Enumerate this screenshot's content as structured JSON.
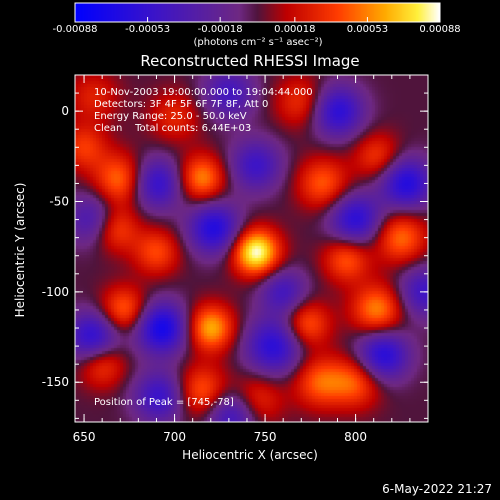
{
  "chart_data": {
    "type": "heatmap",
    "title": "Reconstructed RHESSI Image",
    "xlabel": "Heliocentric X (arcsec)",
    "ylabel": "Heliocentric Y (arcsec)",
    "xlim": [
      645,
      840
    ],
    "ylim": [
      -172,
      20
    ],
    "x_ticks": [
      650,
      700,
      750,
      800
    ],
    "y_ticks": [
      0,
      -50,
      -100,
      -150
    ],
    "colorbar": {
      "ticks": [
        "-0.00088",
        "-0.00053",
        "-0.00018",
        "0.00018",
        "0.00053",
        "0.00088"
      ],
      "tick_values": [
        -0.00088,
        -0.00053,
        -0.00018,
        0.00018,
        0.00053,
        0.00088
      ],
      "range": [
        -0.00088,
        0.00088
      ],
      "unit_label": "(photons cm⁻² s⁻¹ asec⁻²)"
    },
    "annotations": {
      "time_range": "10-Nov-2003 19:00:00.000 to 19:04:44.000",
      "detectors": "Detectors: 3F 4F 5F 6F 7F 8F, Att 0",
      "energy": "Energy Range: 25.0 - 50.0 keV",
      "clean": "Clean    Total counts: 6.44E+03",
      "peak": "Position of Peak = [745,-78]"
    },
    "sources": [
      {
        "x": 745,
        "y": -78,
        "amp": 1.0,
        "w": 9
      },
      {
        "x": 715,
        "y": -37,
        "amp": 0.62,
        "w": 9
      },
      {
        "x": 670,
        "y": -38,
        "amp": 0.58,
        "w": 10
      },
      {
        "x": 667,
        "y": -65,
        "amp": 0.5,
        "w": 9
      },
      {
        "x": 672,
        "y": -110,
        "amp": 0.55,
        "w": 9
      },
      {
        "x": 720,
        "y": -120,
        "amp": 0.72,
        "w": 9
      },
      {
        "x": 715,
        "y": -155,
        "amp": 0.52,
        "w": 10
      },
      {
        "x": 660,
        "y": -140,
        "amp": 0.45,
        "w": 9
      },
      {
        "x": 773,
        "y": -118,
        "amp": 0.52,
        "w": 9
      },
      {
        "x": 780,
        "y": -150,
        "amp": 0.5,
        "w": 10
      },
      {
        "x": 812,
        "y": -110,
        "amp": 0.62,
        "w": 10
      },
      {
        "x": 800,
        "y": -150,
        "amp": 0.5,
        "w": 10
      },
      {
        "x": 825,
        "y": -70,
        "amp": 0.55,
        "w": 10
      },
      {
        "x": 782,
        "y": -40,
        "amp": 0.5,
        "w": 10
      },
      {
        "x": 795,
        "y": -82,
        "amp": 0.5,
        "w": 9
      },
      {
        "x": 770,
        "y": 5,
        "amp": 0.38,
        "w": 10
      },
      {
        "x": 812,
        "y": -25,
        "amp": 0.4,
        "w": 9
      },
      {
        "x": 690,
        "y": -78,
        "amp": 0.45,
        "w": 9
      },
      {
        "x": 745,
        "y": -160,
        "amp": 0.4,
        "w": 10
      },
      {
        "x": 700,
        "y": -3,
        "amp": 0.32,
        "w": 10
      },
      {
        "x": 655,
        "y": 8,
        "amp": 0.3,
        "w": 10
      },
      {
        "x": 650,
        "y": -20,
        "amp": 0.4,
        "w": 9
      },
      {
        "x": 800,
        "y": -60,
        "amp": -0.7,
        "w": 10
      },
      {
        "x": 722,
        "y": -65,
        "amp": -0.75,
        "w": 10
      },
      {
        "x": 693,
        "y": -120,
        "amp": -0.85,
        "w": 10
      },
      {
        "x": 655,
        "y": -125,
        "amp": -0.7,
        "w": 10
      },
      {
        "x": 755,
        "y": -130,
        "amp": -0.7,
        "w": 11
      },
      {
        "x": 815,
        "y": -135,
        "amp": -0.75,
        "w": 10
      },
      {
        "x": 690,
        "y": -40,
        "amp": -0.65,
        "w": 10
      },
      {
        "x": 828,
        "y": -40,
        "amp": -0.75,
        "w": 10
      },
      {
        "x": 790,
        "y": 0,
        "amp": -0.7,
        "w": 10
      },
      {
        "x": 745,
        "y": -30,
        "amp": -0.55,
        "w": 10
      },
      {
        "x": 732,
        "y": -168,
        "amp": -0.6,
        "w": 10
      },
      {
        "x": 692,
        "y": -158,
        "amp": -0.6,
        "w": 10
      },
      {
        "x": 655,
        "y": -60,
        "amp": -0.5,
        "w": 10
      },
      {
        "x": 760,
        "y": -100,
        "amp": -0.5,
        "w": 9
      },
      {
        "x": 730,
        "y": 10,
        "amp": -0.5,
        "w": 10
      },
      {
        "x": 838,
        "y": -100,
        "amp": -0.55,
        "w": 10
      }
    ]
  },
  "footer": {
    "timestamp": "6-May-2022 21:27"
  }
}
